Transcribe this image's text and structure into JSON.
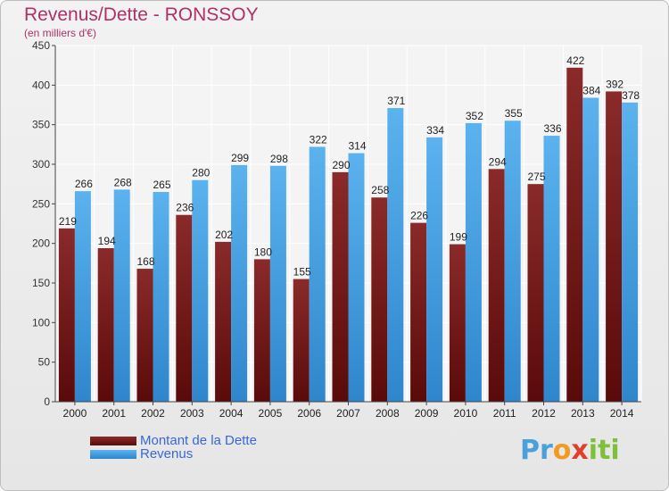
{
  "header": {
    "title": "Revenus/Dette - RONSSOY",
    "subtitle": "(en milliers d'€)"
  },
  "legend": {
    "items": [
      {
        "label": "Montant de la Dette",
        "color": "#7a1a1a"
      },
      {
        "label": "Revenus",
        "color": "#4aa3e6"
      }
    ]
  },
  "logo": {
    "text": "Proxiti"
  },
  "chart_data": {
    "type": "bar",
    "categories": [
      "2000",
      "2001",
      "2002",
      "2003",
      "2004",
      "2005",
      "2006",
      "2007",
      "2008",
      "2009",
      "2010",
      "2011",
      "2012",
      "2013",
      "2014"
    ],
    "series": [
      {
        "name": "Montant de la Dette",
        "color": "#7a1a1a",
        "values": [
          219,
          194,
          168,
          236,
          202,
          180,
          155,
          290,
          258,
          226,
          199,
          294,
          275,
          422,
          392
        ]
      },
      {
        "name": "Revenus",
        "color": "#4aa3e6",
        "values": [
          266,
          268,
          265,
          280,
          299,
          298,
          322,
          314,
          371,
          334,
          352,
          355,
          336,
          384,
          378
        ]
      }
    ],
    "ylim": [
      0,
      450
    ],
    "yticks": [
      0,
      50,
      100,
      150,
      200,
      250,
      300,
      350,
      400,
      450
    ],
    "grid": true,
    "legend_position": "bottom-left"
  }
}
